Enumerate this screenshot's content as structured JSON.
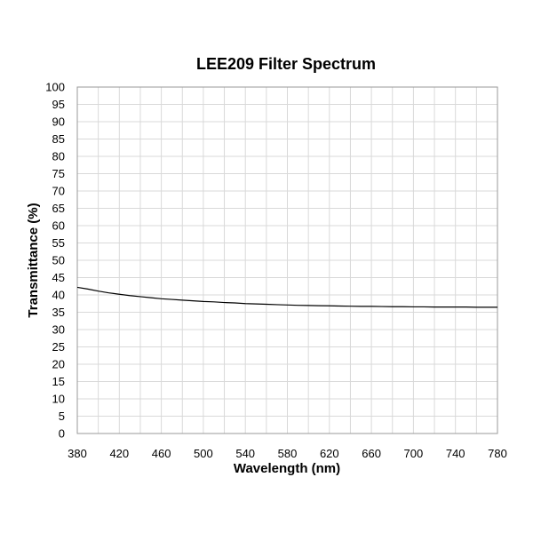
{
  "chart_data": {
    "type": "line",
    "title": "LEE209 Filter Spectrum",
    "xlabel": "Wavelength (nm)",
    "ylabel": "Transmittance (%)",
    "xlim": [
      380,
      780
    ],
    "ylim": [
      0,
      100
    ],
    "x_ticks": [
      380,
      420,
      460,
      500,
      540,
      580,
      620,
      660,
      700,
      740,
      780
    ],
    "y_ticks": [
      0,
      5,
      10,
      15,
      20,
      25,
      30,
      35,
      40,
      45,
      50,
      55,
      60,
      65,
      70,
      75,
      80,
      85,
      90,
      95,
      100
    ],
    "grid": true,
    "line_color": "#000000",
    "series": [
      {
        "x": [
          380,
          390,
          400,
          410,
          420,
          430,
          440,
          450,
          460,
          470,
          480,
          490,
          500,
          510,
          520,
          530,
          540,
          550,
          560,
          570,
          580,
          590,
          600,
          610,
          620,
          630,
          640,
          650,
          660,
          670,
          680,
          690,
          700,
          710,
          720,
          730,
          740,
          750,
          760,
          770,
          780
        ],
        "y": [
          42.2,
          41.7,
          41.1,
          40.6,
          40.2,
          39.8,
          39.5,
          39.2,
          38.9,
          38.7,
          38.5,
          38.3,
          38.1,
          38.0,
          37.8,
          37.7,
          37.5,
          37.4,
          37.3,
          37.2,
          37.1,
          37.0,
          36.95,
          36.9,
          36.85,
          36.8,
          36.75,
          36.7,
          36.7,
          36.65,
          36.6,
          36.6,
          36.55,
          36.55,
          36.5,
          36.5,
          36.5,
          36.5,
          36.45,
          36.45,
          36.45
        ]
      }
    ]
  }
}
